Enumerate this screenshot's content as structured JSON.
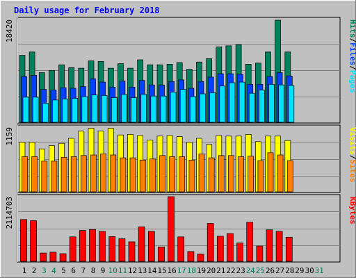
{
  "chart_data": {
    "type": "bar",
    "title": "Daily usage for February 2018",
    "colors": {
      "hits": "#00805c",
      "files": "#0040ff",
      "pages": "#00e0ff",
      "visits": "#ffff00",
      "sites": "#ff8000",
      "kbytes": "#ff0000",
      "weekend": "#00805c",
      "weekday": "#000000",
      "title": "#0000ff"
    },
    "days": [
      "1",
      "2",
      "3",
      "4",
      "5",
      "6",
      "7",
      "8",
      "9",
      "10",
      "11",
      "12",
      "13",
      "14",
      "15",
      "16",
      "17",
      "18",
      "19",
      "20",
      "21",
      "22",
      "23",
      "24",
      "25",
      "26",
      "27",
      "28",
      "29",
      "30",
      "31"
    ],
    "weekend_days": [
      3,
      4,
      10,
      11,
      17,
      18,
      24,
      25,
      31
    ],
    "panels": [
      {
        "id": "hits-files-pages",
        "scale_label": "18420",
        "ylim": [
          0,
          18420
        ],
        "legend": [
          {
            "text": "Hits",
            "key": "hits"
          },
          {
            "text": "/",
            "key": "weekday"
          },
          {
            "text": "Files",
            "key": "files"
          },
          {
            "text": "/",
            "key": "weekday"
          },
          {
            "text": "Pages",
            "key": "pages"
          }
        ],
        "series": [
          {
            "name": "Hits",
            "key": "hits",
            "values": [
              12000,
              12600,
              8900,
              9300,
              10300,
              9800,
              9700,
              11000,
              10900,
              9700,
              10500,
              9700,
              11200,
              10300,
              10300,
              10400,
              10700,
              9500,
              10800,
              11400,
              13500,
              13700,
              13900,
              10400,
              10600,
              12600,
              18300,
              12600,
              0,
              0,
              0
            ]
          },
          {
            "name": "Files",
            "key": "files",
            "values": [
              8200,
              8400,
              5900,
              5800,
              6200,
              6100,
              6400,
              7800,
              7200,
              6300,
              7400,
              6300,
              7500,
              6700,
              6700,
              7300,
              7600,
              6100,
              7300,
              8100,
              8700,
              8700,
              8600,
              6800,
              6800,
              8200,
              8900,
              8300,
              0,
              0,
              0
            ]
          },
          {
            "name": "Pages",
            "key": "pages",
            "values": [
              4500,
              4500,
              3400,
              4000,
              4200,
              4300,
              4600,
              4900,
              4800,
              4400,
              5000,
              4400,
              5000,
              4700,
              4700,
              5400,
              5900,
              4600,
              5100,
              5300,
              6500,
              7100,
              7200,
              5200,
              5800,
              6800,
              6700,
              6600,
              0,
              0,
              0
            ]
          }
        ]
      },
      {
        "id": "visits-sites",
        "scale_label": "1159",
        "ylim": [
          0,
          1159
        ],
        "legend": [
          {
            "text": "Visits",
            "key": "visits"
          },
          {
            "text": "/",
            "key": "weekday"
          },
          {
            "text": "Sites",
            "key": "sites"
          }
        ],
        "series": [
          {
            "name": "Visits",
            "key": "visits",
            "values": [
              890,
              890,
              770,
              830,
              870,
              960,
              1090,
              1140,
              1090,
              1140,
              1020,
              1030,
              1010,
              930,
              1000,
              1010,
              990,
              890,
              960,
              850,
              1010,
              1000,
              1000,
              1030,
              900,
              1000,
              1000,
              920,
              0,
              0,
              0
            ]
          },
          {
            "name": "Sites",
            "key": "sites",
            "values": [
              630,
              630,
              550,
              550,
              620,
              630,
              650,
              660,
              680,
              660,
              610,
              610,
              570,
              590,
              650,
              630,
              630,
              570,
              680,
              610,
              650,
              650,
              630,
              640,
              560,
              700,
              660,
              560,
              0,
              0,
              0
            ]
          }
        ]
      },
      {
        "id": "kbytes",
        "scale_label": "2114703",
        "ylim": [
          0,
          2114703
        ],
        "legend": [
          {
            "text": "KBytes",
            "key": "kbytes"
          }
        ],
        "series": [
          {
            "name": "KBytes",
            "key": "kbytes",
            "values": [
              1370000,
              1330000,
              270000,
              300000,
              250000,
              800000,
              1010000,
              1040000,
              980000,
              810000,
              740000,
              640000,
              1130000,
              980000,
              470000,
              2114703,
              800000,
              320000,
              240000,
              1240000,
              820000,
              910000,
              600000,
              1280000,
              500000,
              1030000,
              980000,
              790000,
              0,
              0,
              0
            ]
          }
        ]
      }
    ]
  }
}
